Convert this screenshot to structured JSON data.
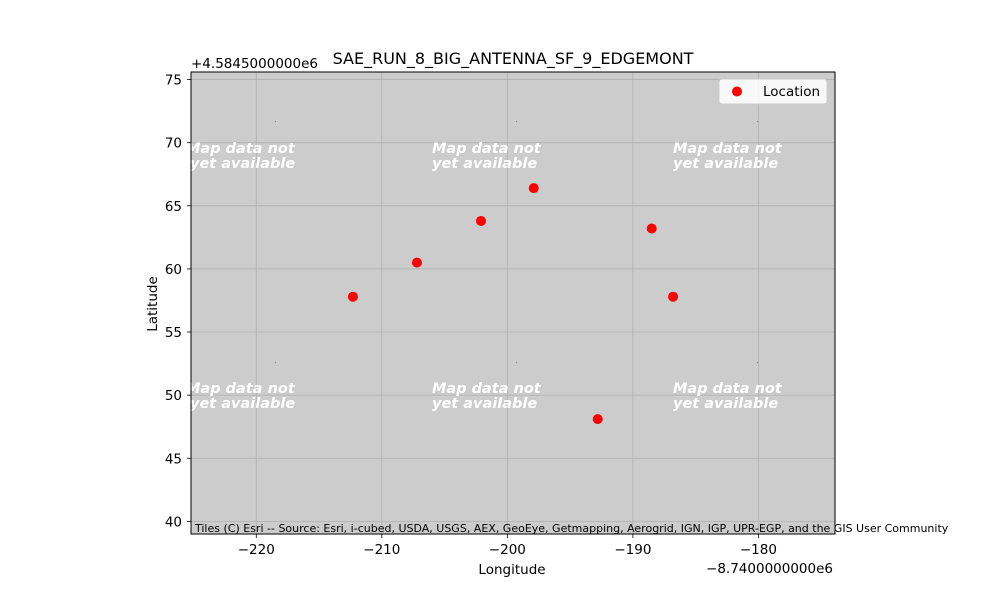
{
  "chart_data": {
    "type": "scatter",
    "title": "SAE_RUN_8_BIG_ANTENNA_SF_9_EDGEMONT",
    "xlabel": "Longitude",
    "ylabel": "Latitude",
    "x_offset_label": "−8.7400000000e6",
    "y_offset_label": "+4.5845000000e6",
    "xlim": [
      -225.2,
      -173.9
    ],
    "ylim": [
      39.0,
      75.6
    ],
    "x_ticks": [
      -220,
      -210,
      -200,
      -190,
      -180
    ],
    "x_tick_labels": [
      "−220",
      "−210",
      "−200",
      "−190",
      "−180"
    ],
    "y_ticks": [
      40,
      45,
      50,
      55,
      60,
      65,
      70,
      75
    ],
    "y_tick_labels": [
      "40",
      "45",
      "50",
      "55",
      "60",
      "65",
      "70",
      "75"
    ],
    "grid": true,
    "legend_position": "top-right",
    "series": [
      {
        "name": "Location",
        "color": "#ff0000",
        "points": [
          {
            "x": -212.3,
            "y": 57.8
          },
          {
            "x": -207.2,
            "y": 60.5
          },
          {
            "x": -202.1,
            "y": 63.8
          },
          {
            "x": -197.9,
            "y": 66.4
          },
          {
            "x": -192.8,
            "y": 48.1
          },
          {
            "x": -188.5,
            "y": 63.2
          },
          {
            "x": -186.8,
            "y": 57.8
          }
        ]
      }
    ],
    "basemap": {
      "background_color": "#cccccc",
      "tile_text_line1": "Map data not",
      "tile_text_line2": "yet available",
      "attribution": "Tiles (C) Esri -- Source: Esri, i-cubed, USDA, USGS, AEX, GeoEye, Getmapping, Aerogrid, IGN, IGP, UPR-EGP, and the GIS User Community"
    }
  }
}
